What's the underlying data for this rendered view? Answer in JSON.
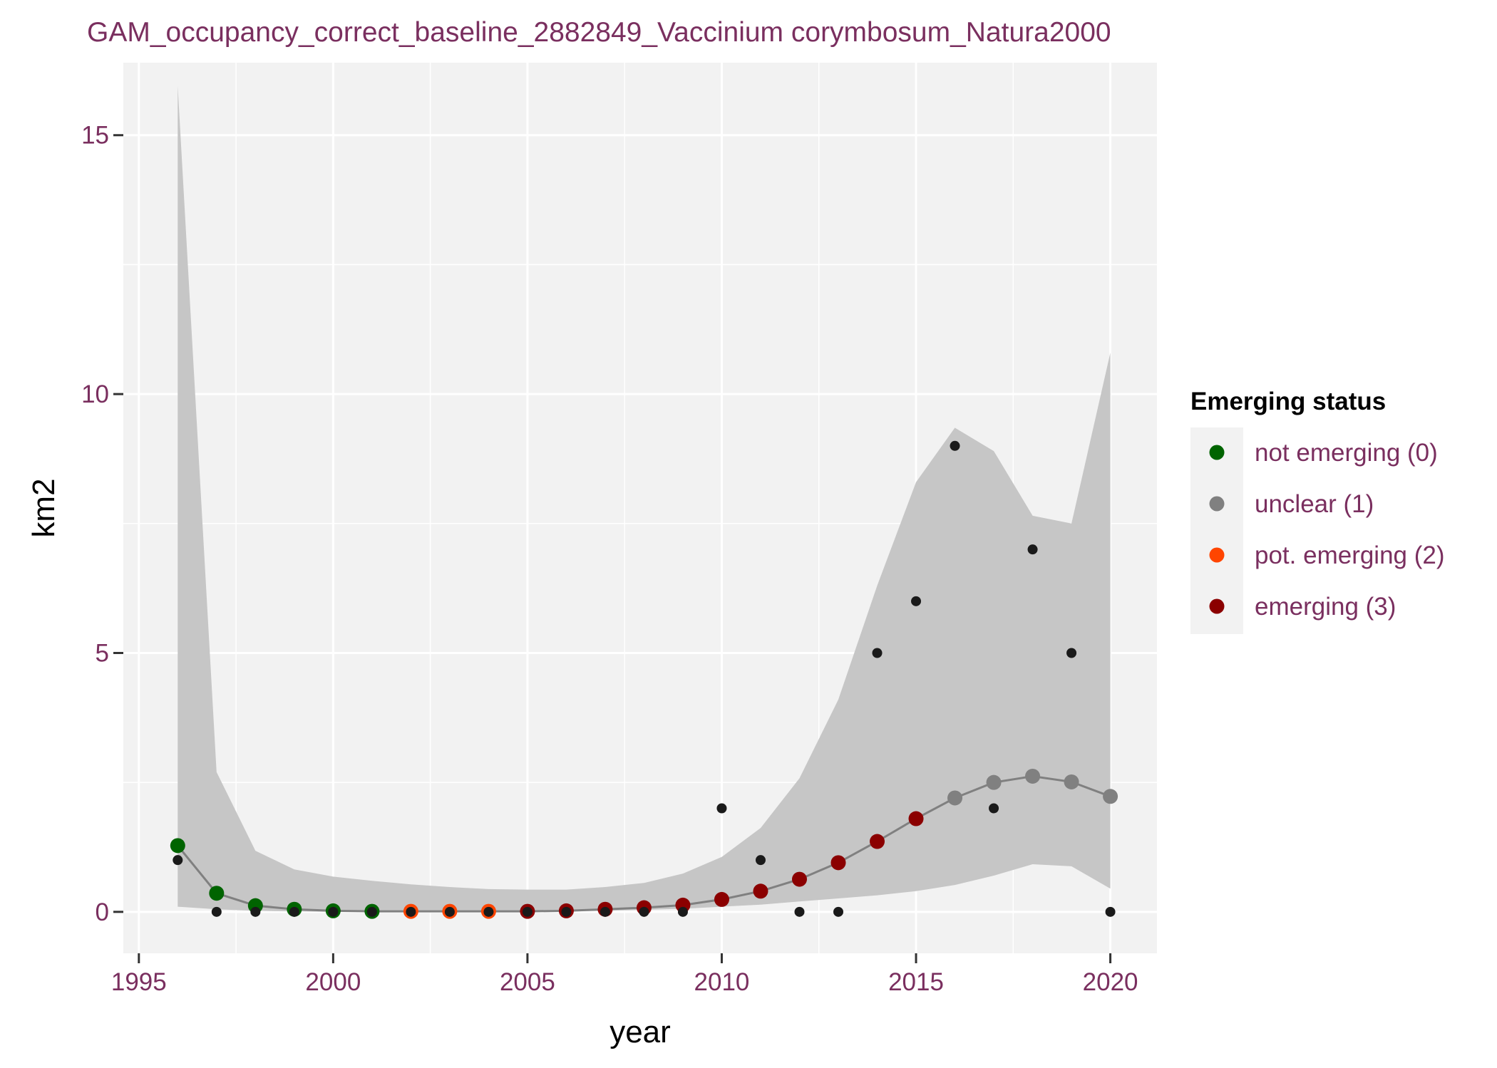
{
  "colors": {
    "text_accent": "#7a2f5f",
    "panel_bg": "#f2f2f2",
    "grid": "#ffffff",
    "ribbon": "#c6c6c6",
    "smooth_line": "#808080",
    "observed_point": "#1a1a1a"
  },
  "chart_data": {
    "type": "scatter",
    "title": "GAM_occupancy_correct_baseline_2882849_Vaccinium corymbosum_Natura2000",
    "xlabel": "year",
    "ylabel": "km2",
    "xlim": [
      1994.6,
      2021.2
    ],
    "ylim": [
      -0.8,
      16.4
    ],
    "xticks": [
      1995,
      2000,
      2005,
      2010,
      2015,
      2020
    ],
    "xtick_labels": [
      "1995",
      "2000",
      "2005",
      "2010",
      "2015",
      "2020"
    ],
    "yticks": [
      0,
      5,
      10,
      15
    ],
    "ytick_labels": [
      "0",
      "5",
      "10",
      "15"
    ],
    "grid": true,
    "legend": {
      "title": "Emerging status",
      "position": "right",
      "entries": [
        {
          "label": "not emerging (0)",
          "color": "#006400"
        },
        {
          "label": "unclear (1)",
          "color": "#808080"
        },
        {
          "label": "pot. emerging (2)",
          "color": "#ff4500"
        },
        {
          "label": "emerging (3)",
          "color": "#8b0000"
        }
      ]
    },
    "observed": {
      "x": [
        1996,
        1997,
        1998,
        1999,
        2000,
        2001,
        2002,
        2003,
        2004,
        2005,
        2006,
        2007,
        2008,
        2009,
        2010,
        2011,
        2012,
        2013,
        2014,
        2015,
        2016,
        2017,
        2018,
        2019,
        2020
      ],
      "y": [
        1,
        0,
        0,
        0,
        0,
        0,
        0,
        0,
        0,
        0,
        0,
        0,
        0,
        0,
        2,
        1,
        0,
        0,
        5,
        6,
        9,
        2,
        7,
        5,
        0
      ]
    },
    "fitted": {
      "x": [
        1996,
        1997,
        1998,
        1999,
        2000,
        2001,
        2002,
        2003,
        2004,
        2005,
        2006,
        2007,
        2008,
        2009,
        2010,
        2011,
        2012,
        2013,
        2014,
        2015,
        2016,
        2017,
        2018,
        2019,
        2020
      ],
      "y": [
        1.28,
        0.36,
        0.12,
        0.05,
        0.02,
        0.01,
        0.01,
        0.01,
        0.01,
        0.01,
        0.02,
        0.05,
        0.08,
        0.13,
        0.24,
        0.4,
        0.63,
        0.95,
        1.36,
        1.8,
        2.2,
        2.5,
        2.62,
        2.51,
        2.23
      ],
      "status": [
        0,
        0,
        0,
        0,
        0,
        0,
        2,
        2,
        2,
        3,
        3,
        3,
        3,
        3,
        3,
        3,
        3,
        3,
        3,
        3,
        1,
        1,
        1,
        1,
        1
      ]
    },
    "ci": {
      "x": [
        1996,
        1997,
        1998,
        1999,
        2000,
        2001,
        2002,
        2003,
        2004,
        2005,
        2006,
        2007,
        2008,
        2009,
        2010,
        2011,
        2012,
        2013,
        2014,
        2015,
        2016,
        2017,
        2018,
        2019,
        2020
      ],
      "lower": [
        0.1,
        0.05,
        0.02,
        0.01,
        0.0,
        0.0,
        0.0,
        0.0,
        0.0,
        0.0,
        0.01,
        0.02,
        0.04,
        0.06,
        0.1,
        0.14,
        0.2,
        0.26,
        0.32,
        0.4,
        0.52,
        0.7,
        0.92,
        0.88,
        0.45
      ],
      "upper": [
        15.95,
        2.7,
        1.18,
        0.82,
        0.68,
        0.6,
        0.53,
        0.48,
        0.44,
        0.43,
        0.43,
        0.48,
        0.56,
        0.74,
        1.06,
        1.62,
        2.58,
        4.1,
        6.3,
        8.3,
        9.35,
        8.9,
        7.65,
        7.5,
        10.8
      ]
    }
  }
}
